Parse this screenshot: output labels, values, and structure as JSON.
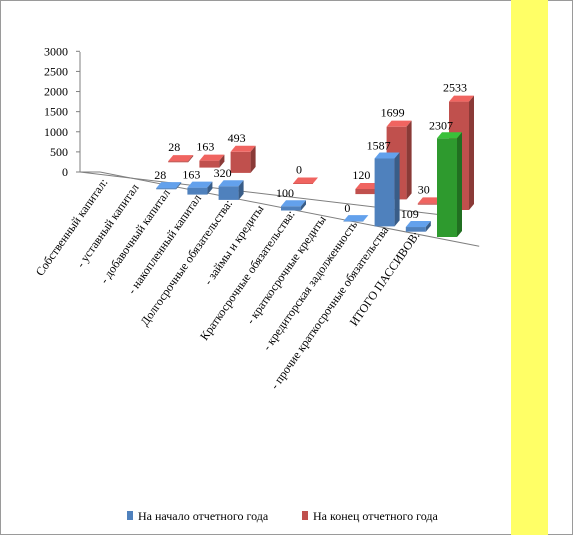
{
  "chart_data": {
    "type": "bar",
    "categories": [
      "Собственный капитал:",
      "- уставный капитал",
      "- добавочный капитал",
      "- накопленный капитал",
      "Долгосрочные обязательства:",
      "- займы и кредиты",
      "Краткосрочные обязательства:",
      "- краткосрочные кредиты",
      "- кредиторская задолженность",
      "- прочие краткосрочные обязательства",
      "ИТОГО ПАССИВОВ:"
    ],
    "series": [
      {
        "name": "На начало отчетного года",
        "color": "#4f81bd",
        "values": [
          null,
          28,
          163,
          320,
          null,
          100,
          null,
          0,
          1587,
          109,
          2307
        ],
        "labels": [
          "",
          "28",
          "163",
          "320",
          "",
          "100",
          "",
          "0",
          "1587",
          "109",
          "2307"
        ]
      },
      {
        "name": "На конец отчетного года",
        "color": "#c0504d",
        "values": [
          null,
          28,
          163,
          493,
          null,
          0,
          null,
          120,
          1699,
          30,
          2533
        ],
        "labels": [
          "",
          "28",
          "163",
          "493",
          "",
          "0",
          "",
          "120",
          "1699",
          "30",
          "2533"
        ]
      }
    ],
    "highlight_category": "ИТОГО ПАССИВОВ:",
    "highlight_color": "#ffff66",
    "highlight_bar_color": "#2e9a2e",
    "y_ticks": [
      "0",
      "500",
      "1000",
      "1500",
      "2000",
      "2500",
      "3000"
    ],
    "ylim": [
      0,
      3000
    ],
    "legend_position": "bottom"
  }
}
